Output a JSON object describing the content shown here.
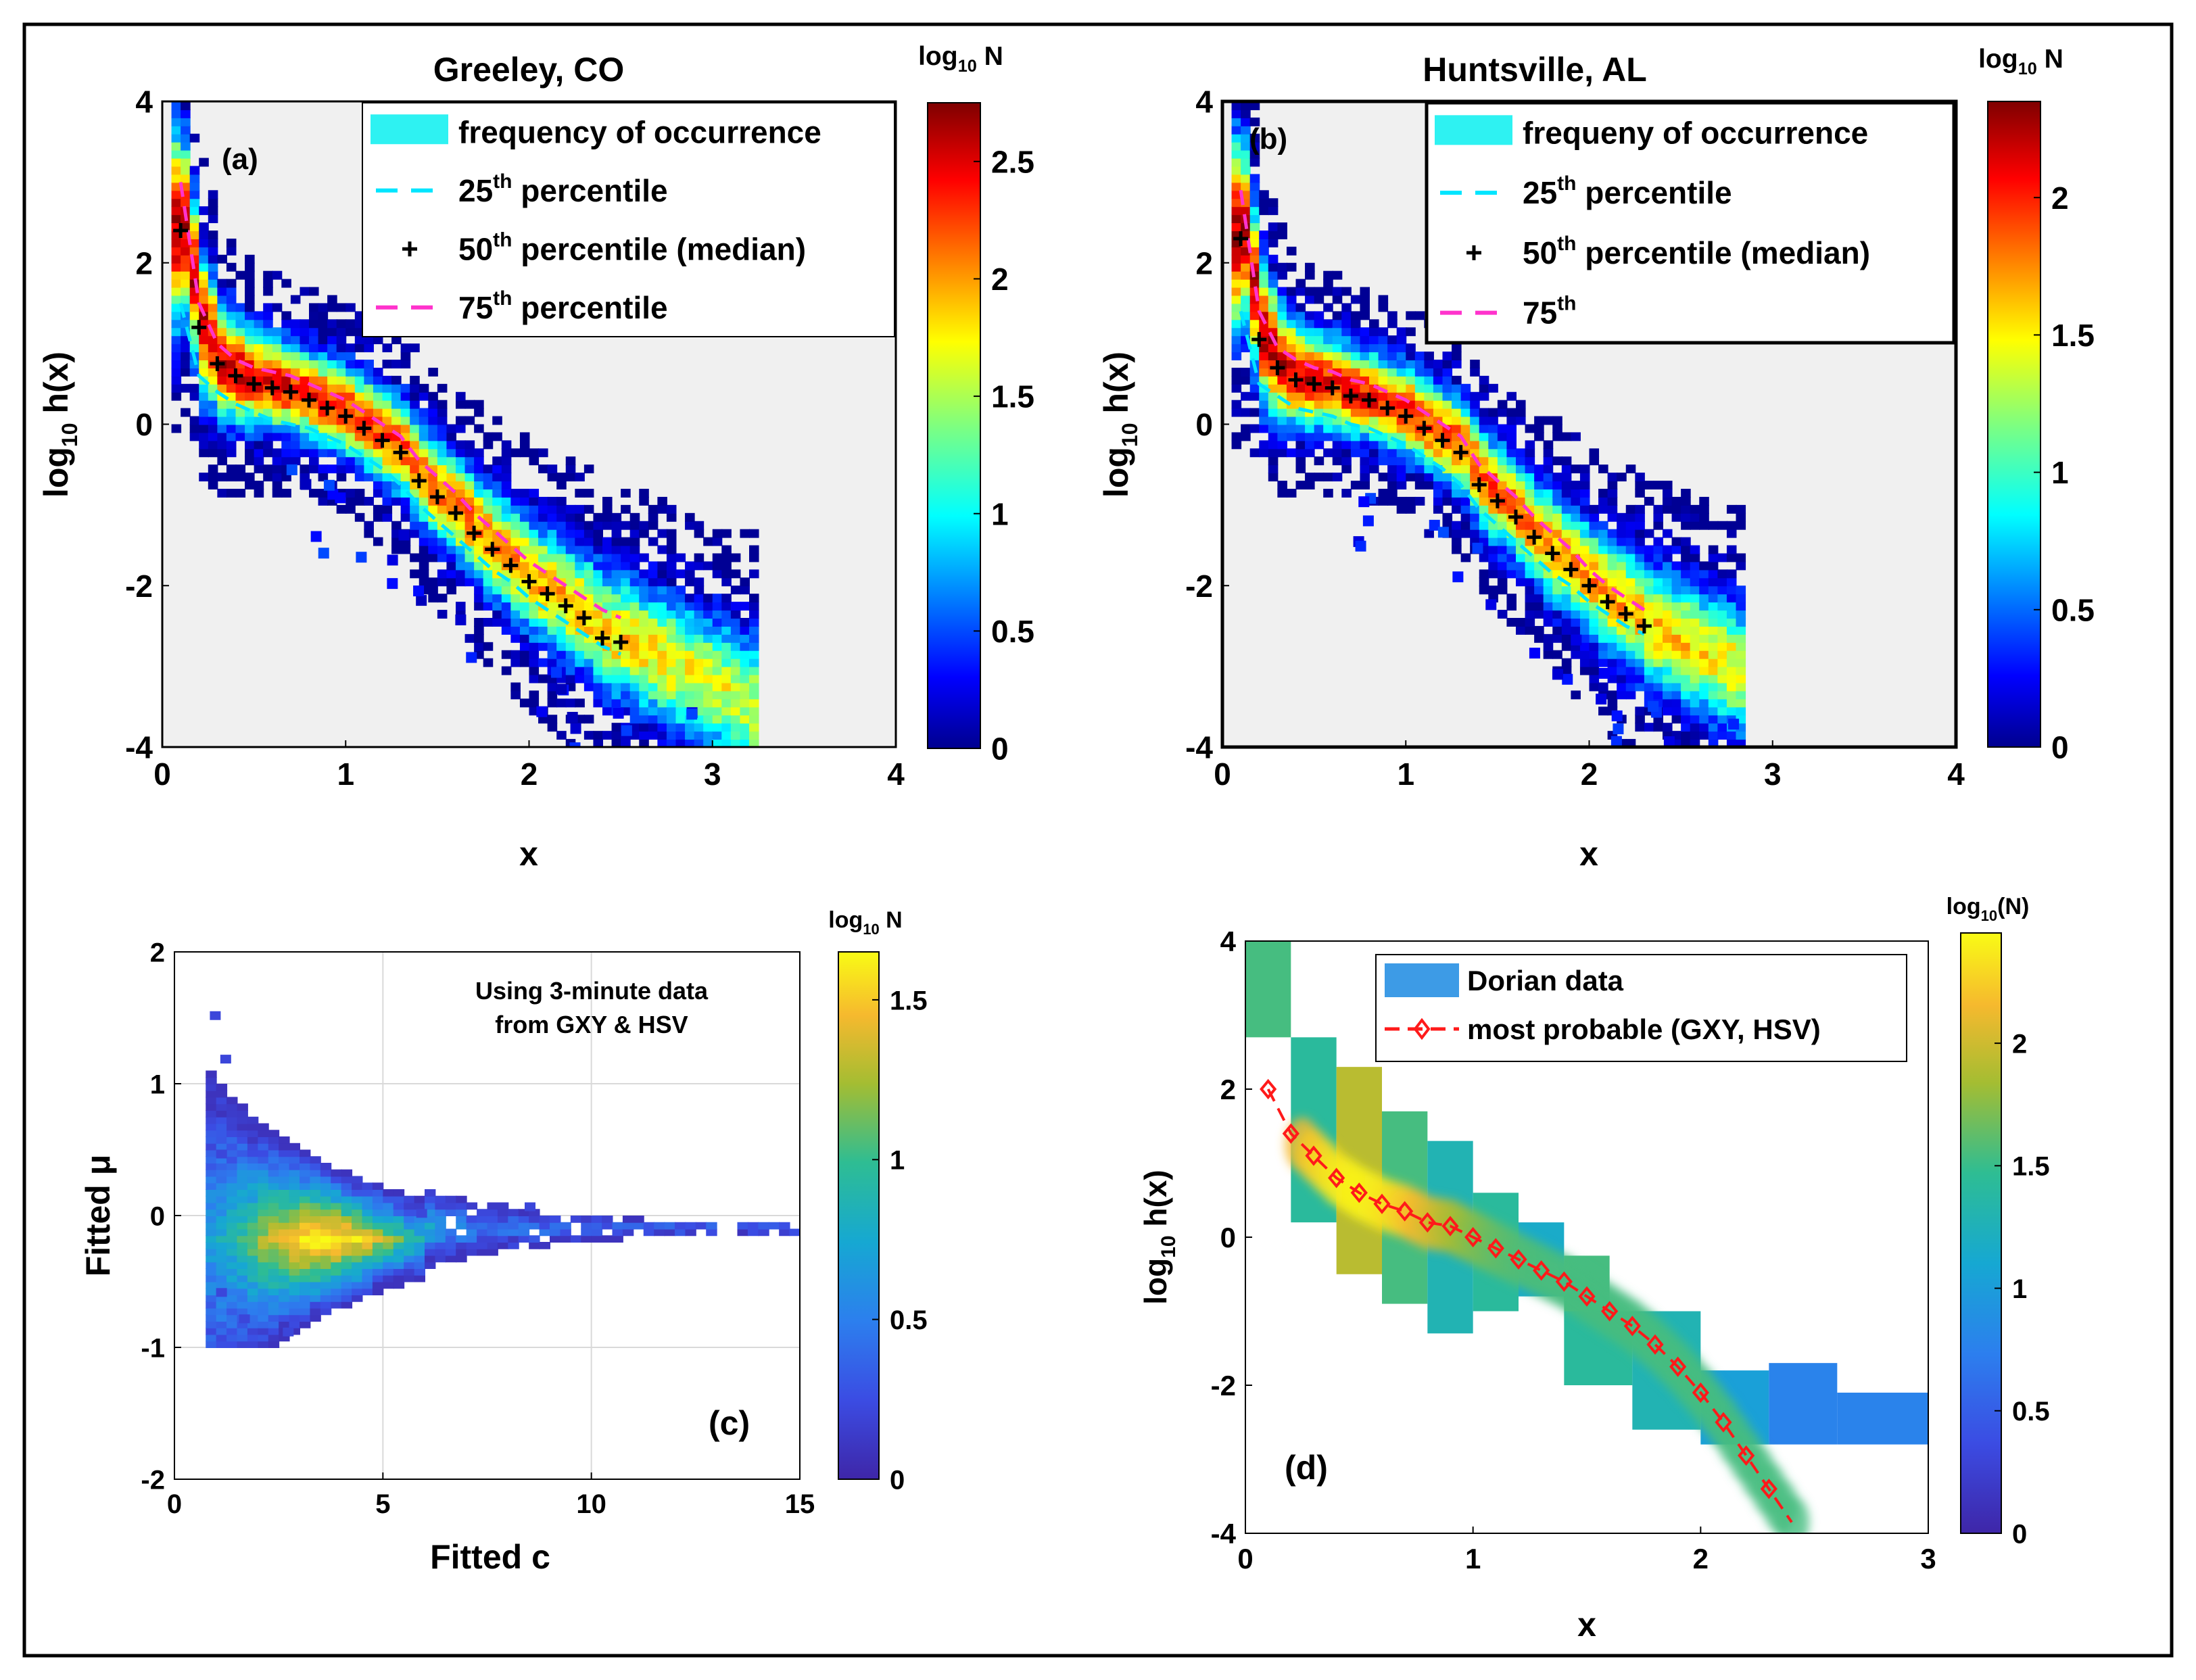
{
  "chart_data": [
    {
      "panel": "a",
      "type": "heatmap",
      "title": "Greeley, CO",
      "panel_label": "(a)",
      "xlabel": "x",
      "ylabel_main": "log",
      "ylabel_sub": "10",
      "ylabel_rest": " h(x)",
      "xlim": [
        0,
        4
      ],
      "ylim": [
        -4,
        4
      ],
      "xticks": [
        "0",
        "1",
        "2",
        "3",
        "4"
      ],
      "yticks": [
        "-4",
        "-2",
        "0",
        "2",
        "4"
      ],
      "colorbar": {
        "label_main": "log",
        "label_sub": "10",
        "label_rest": " N",
        "range": [
          0,
          2.75
        ],
        "ticks": [
          "0",
          "0.5",
          "1",
          "1.5",
          "2",
          "2.5"
        ],
        "tick_values": [
          0,
          0.5,
          1,
          1.5,
          2,
          2.5
        ],
        "colormap": "jet"
      },
      "legend": {
        "position": "top-right",
        "entries": [
          {
            "kind": "patch",
            "label": "frequency of occurrence"
          },
          {
            "kind": "cyan-dash",
            "label": "25",
            "sup": "th",
            "rest": " percentile"
          },
          {
            "kind": "plus",
            "label": "50",
            "sup": "th",
            "rest": " percentile (median)"
          },
          {
            "kind": "magenta-dash",
            "label": "75",
            "sup": "th",
            "rest": " percentile"
          }
        ]
      },
      "median_x": [
        0.1,
        0.2,
        0.3,
        0.4,
        0.5,
        0.6,
        0.7,
        0.8,
        0.9,
        1.0,
        1.1,
        1.2,
        1.3,
        1.4,
        1.5,
        1.6,
        1.7,
        1.8,
        1.9,
        2.0,
        2.1,
        2.2,
        2.3,
        2.4,
        2.5
      ],
      "median_y": [
        2.4,
        1.2,
        0.75,
        0.6,
        0.5,
        0.45,
        0.4,
        0.3,
        0.2,
        0.1,
        -0.05,
        -0.2,
        -0.35,
        -0.7,
        -0.9,
        -1.1,
        -1.35,
        -1.55,
        -1.75,
        -1.95,
        -2.1,
        -2.25,
        -2.4,
        -2.65,
        -2.7
      ],
      "p25_y": [
        1.5,
        0.6,
        0.4,
        0.25,
        0.15,
        0.05,
        0.0,
        -0.05,
        -0.15,
        -0.25,
        -0.4,
        -0.55,
        -0.75,
        -1.0,
        -1.2,
        -1.4,
        -1.6,
        -1.8,
        -1.95,
        -2.15,
        -2.3,
        -2.45,
        -2.6,
        -2.75,
        -2.85
      ],
      "p75_y": [
        3.0,
        1.5,
        1.0,
        0.8,
        0.7,
        0.65,
        0.6,
        0.5,
        0.4,
        0.3,
        0.15,
        0.0,
        -0.15,
        -0.45,
        -0.65,
        -0.85,
        -1.1,
        -1.3,
        -1.5,
        -1.7,
        -1.85,
        -2.0,
        -2.15,
        -2.3,
        -2.4
      ],
      "max_x": 3.2
    },
    {
      "panel": "b",
      "type": "heatmap",
      "title": "Huntsville, AL",
      "panel_label": "(b)",
      "xlabel": "x",
      "ylabel_main": "log",
      "ylabel_sub": "10",
      "ylabel_rest": " h(x)",
      "xlim": [
        0,
        4
      ],
      "ylim": [
        -4,
        4
      ],
      "xticks": [
        "0",
        "1",
        "2",
        "3",
        "4"
      ],
      "yticks": [
        "-4",
        "-2",
        "0",
        "2",
        "4"
      ],
      "colorbar": {
        "label_main": "log",
        "label_sub": "10",
        "label_rest": " N",
        "range": [
          0,
          2.35
        ],
        "ticks": [
          "0",
          "0.5",
          "1",
          "1.5",
          "2"
        ],
        "tick_values": [
          0,
          0.5,
          1,
          1.5,
          2
        ],
        "colormap": "jet"
      },
      "legend": {
        "position": "top-right",
        "entries": [
          {
            "kind": "patch",
            "label": "frequeny of occurrence"
          },
          {
            "kind": "cyan-dash",
            "label": "25",
            "sup": "th",
            "rest": " percentile"
          },
          {
            "kind": "plus",
            "label": "50",
            "sup": "th",
            "rest": " percentile (median)"
          },
          {
            "kind": "magenta-dash",
            "label": "75",
            "sup": "th",
            "rest": ""
          }
        ]
      },
      "median_x": [
        0.1,
        0.2,
        0.3,
        0.4,
        0.5,
        0.6,
        0.7,
        0.8,
        0.9,
        1.0,
        1.1,
        1.2,
        1.3,
        1.4,
        1.5,
        1.6,
        1.7,
        1.8,
        1.9,
        2.0,
        2.1,
        2.2,
        2.3
      ],
      "median_y": [
        2.3,
        1.05,
        0.7,
        0.55,
        0.5,
        0.45,
        0.35,
        0.3,
        0.2,
        0.1,
        -0.05,
        -0.2,
        -0.35,
        -0.75,
        -0.95,
        -1.15,
        -1.4,
        -1.6,
        -1.8,
        -2.0,
        -2.2,
        -2.35,
        -2.5
      ],
      "p25_y": [
        1.4,
        0.5,
        0.35,
        0.2,
        0.15,
        0.1,
        0.0,
        -0.05,
        -0.15,
        -0.25,
        -0.4,
        -0.55,
        -0.75,
        -1.05,
        -1.25,
        -1.45,
        -1.65,
        -1.85,
        -2.0,
        -2.2,
        -2.35,
        -2.5,
        -2.6
      ],
      "p75_y": [
        2.9,
        1.4,
        0.95,
        0.8,
        0.7,
        0.65,
        0.55,
        0.5,
        0.4,
        0.3,
        0.15,
        0.0,
        -0.15,
        -0.5,
        -0.7,
        -0.9,
        -1.15,
        -1.35,
        -1.55,
        -1.8,
        -2.0,
        -2.15,
        -2.3
      ],
      "max_x": 2.8
    },
    {
      "panel": "c",
      "type": "heatmap",
      "panel_label": "(c)",
      "annotation_line1": "Using 3-minute data",
      "annotation_line2": "from GXY & HSV",
      "xlabel": "Fitted c",
      "ylabel": "Fitted μ",
      "xlim": [
        0,
        15
      ],
      "ylim": [
        -2,
        2
      ],
      "xticks": [
        "0",
        "5",
        "10",
        "15"
      ],
      "yticks": [
        "-2",
        "-1",
        "0",
        "1",
        "2"
      ],
      "grid": true,
      "colorbar": {
        "label_main": "log",
        "label_sub": "10",
        "label_rest": " N",
        "range": [
          0,
          1.65
        ],
        "ticks": [
          "0",
          "0.5",
          "1",
          "1.5"
        ],
        "tick_values": [
          0,
          0.5,
          1,
          1.5
        ],
        "colormap": "parula"
      },
      "cluster_center": [
        3.5,
        -0.2
      ]
    },
    {
      "panel": "d",
      "type": "heatmap",
      "panel_label": "(d)",
      "xlabel": "x",
      "ylabel_main": "log",
      "ylabel_sub": "10",
      "ylabel_rest": " h(x)",
      "xlim": [
        0,
        3
      ],
      "ylim": [
        -4,
        4
      ],
      "xticks": [
        "0",
        "1",
        "2",
        "3"
      ],
      "yticks": [
        "-4",
        "-2",
        "0",
        "2",
        "4"
      ],
      "colorbar": {
        "label_main": "log",
        "label_sub": "10",
        "label_rest": "(N)",
        "range": [
          0,
          2.45
        ],
        "ticks": [
          "0",
          "0.5",
          "1",
          "1.5",
          "2"
        ],
        "tick_values": [
          0,
          0.5,
          1,
          1.5,
          2
        ],
        "colormap": "parula"
      },
      "legend": {
        "position": "top-right",
        "entries": [
          {
            "kind": "patch",
            "label": "Dorian data"
          },
          {
            "kind": "red-dash-diamond",
            "label": "most probable (GXY, HSV)"
          }
        ]
      },
      "most_probable_x": [
        0.1,
        0.2,
        0.3,
        0.4,
        0.5,
        0.6,
        0.7,
        0.8,
        0.9,
        1.0,
        1.1,
        1.2,
        1.3,
        1.4,
        1.5,
        1.6,
        1.7,
        1.8,
        1.9,
        2.0,
        2.1,
        2.2,
        2.3,
        2.4
      ],
      "most_probable_y": [
        2.0,
        1.4,
        1.1,
        0.8,
        0.6,
        0.45,
        0.35,
        0.2,
        0.15,
        0.0,
        -0.15,
        -0.3,
        -0.45,
        -0.6,
        -0.8,
        -1.0,
        -1.2,
        -1.45,
        -1.75,
        -2.1,
        -2.5,
        -2.95,
        -3.4,
        -3.85
      ]
    }
  ]
}
